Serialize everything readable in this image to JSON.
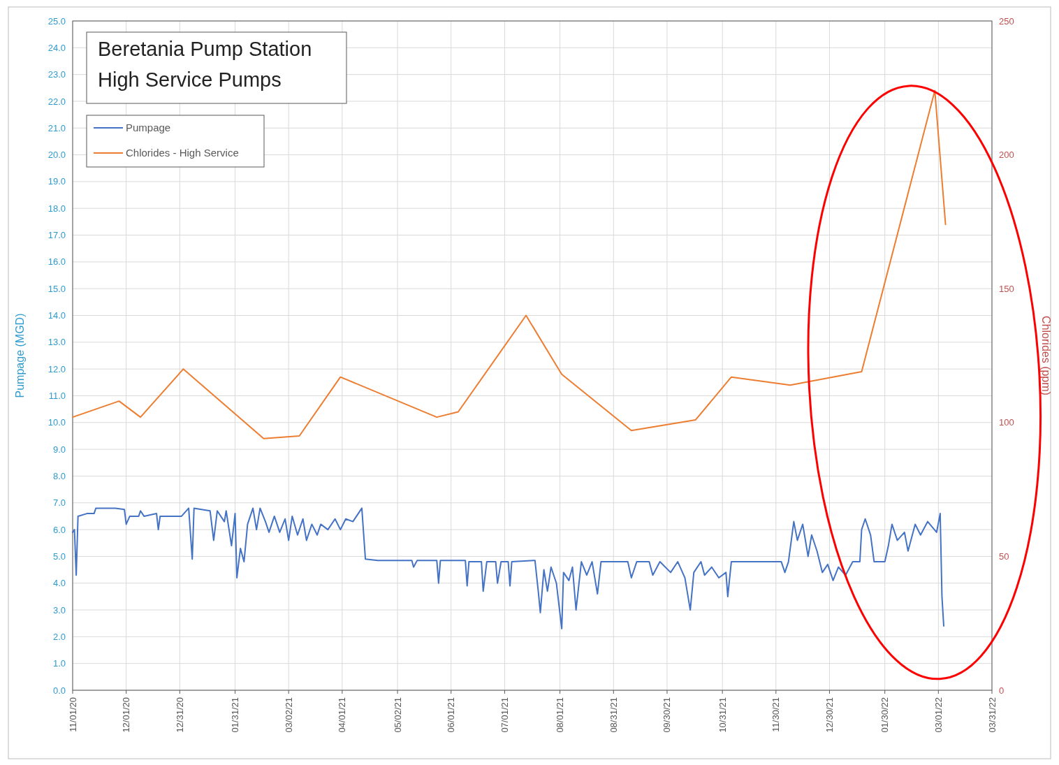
{
  "chart_data": {
    "type": "line",
    "title": "Beretania Pump Station\nHigh Service Pumps",
    "ylabel": "Pumpage (MGD)",
    "y2label": "Chlorides (ppm)",
    "xlim": [
      "2020-11-01",
      "2022-03-31"
    ],
    "xticks": [
      {
        "value": "2020-11-01",
        "label": "11/01/20"
      },
      {
        "value": "2020-12-01",
        "label": "12/01/20"
      },
      {
        "value": "2020-12-31",
        "label": "12/31/20"
      },
      {
        "value": "2021-01-31",
        "label": "01/31/21"
      },
      {
        "value": "2021-03-02",
        "label": "03/02/21"
      },
      {
        "value": "2021-04-01",
        "label": "04/01/21"
      },
      {
        "value": "2021-05-02",
        "label": "05/02/21"
      },
      {
        "value": "2021-06-01",
        "label": "06/01/21"
      },
      {
        "value": "2021-07-01",
        "label": "07/01/21"
      },
      {
        "value": "2021-08-01",
        "label": "08/01/21"
      },
      {
        "value": "2021-08-31",
        "label": "08/31/21"
      },
      {
        "value": "2021-09-30",
        "label": "09/30/21"
      },
      {
        "value": "2021-10-31",
        "label": "10/31/21"
      },
      {
        "value": "2021-11-30",
        "label": "11/30/21"
      },
      {
        "value": "2021-12-30",
        "label": "12/30/21"
      },
      {
        "value": "2022-01-30",
        "label": "01/30/22"
      },
      {
        "value": "2022-03-01",
        "label": "03/01/22"
      },
      {
        "value": "2022-03-31",
        "label": "03/31/22"
      }
    ],
    "ylim": [
      0,
      25
    ],
    "yticks": [
      {
        "value": 0,
        "label": "0.0"
      },
      {
        "value": 1,
        "label": "1.0"
      },
      {
        "value": 2,
        "label": "2.0"
      },
      {
        "value": 3,
        "label": "3.0"
      },
      {
        "value": 4,
        "label": "4.0"
      },
      {
        "value": 5,
        "label": "5.0"
      },
      {
        "value": 6,
        "label": "6.0"
      },
      {
        "value": 7,
        "label": "7.0"
      },
      {
        "value": 8,
        "label": "8.0"
      },
      {
        "value": 9,
        "label": "9.0"
      },
      {
        "value": 10,
        "label": "10.0"
      },
      {
        "value": 11,
        "label": "11.0"
      },
      {
        "value": 12,
        "label": "12.0"
      },
      {
        "value": 13,
        "label": "13.0"
      },
      {
        "value": 14,
        "label": "14.0"
      },
      {
        "value": 15,
        "label": "15.0"
      },
      {
        "value": 16,
        "label": "16.0"
      },
      {
        "value": 17,
        "label": "17.0"
      },
      {
        "value": 18,
        "label": "18.0"
      },
      {
        "value": 19,
        "label": "19.0"
      },
      {
        "value": 20,
        "label": "20.0"
      },
      {
        "value": 21,
        "label": "21.0"
      },
      {
        "value": 22,
        "label": "22.0"
      },
      {
        "value": 23,
        "label": "23.0"
      },
      {
        "value": 24,
        "label": "24.0"
      },
      {
        "value": 25,
        "label": "25.0"
      }
    ],
    "y2lim": [
      0,
      250
    ],
    "y2ticks": [
      0,
      50,
      100,
      150,
      200,
      250
    ],
    "grid": true,
    "legend": "top left",
    "marker": "none",
    "series": [
      {
        "name": "Pumpage",
        "color": "#4472c4",
        "x": [
          "2020-11-01",
          "2020-11-02",
          "2020-11-03",
          "2020-11-04",
          "2020-11-09",
          "2020-11-13",
          "2020-11-14",
          "2020-11-25",
          "2020-11-30",
          "2020-12-01",
          "2020-12-03",
          "2020-12-08",
          "2020-12-09",
          "2020-12-11",
          "2020-12-18",
          "2020-12-19",
          "2020-12-20",
          "2020-12-26",
          "2021-01-01",
          "2021-01-05",
          "2021-01-07",
          "2021-01-08",
          "2021-01-17",
          "2021-01-19",
          "2021-01-21",
          "2021-01-25",
          "2021-01-26",
          "2021-01-29",
          "2021-01-31",
          "2021-02-01",
          "2021-02-03",
          "2021-02-05",
          "2021-02-07",
          "2021-02-10",
          "2021-02-12",
          "2021-02-14",
          "2021-02-17",
          "2021-02-19",
          "2021-02-22",
          "2021-02-25",
          "2021-02-28",
          "2021-03-02",
          "2021-03-04",
          "2021-03-07",
          "2021-03-10",
          "2021-03-12",
          "2021-03-15",
          "2021-03-18",
          "2021-03-20",
          "2021-03-24",
          "2021-03-28",
          "2021-03-31",
          "2021-04-03",
          "2021-04-07",
          "2021-04-10",
          "2021-04-12",
          "2021-04-14",
          "2021-04-21",
          "2021-05-10",
          "2021-05-11",
          "2021-05-13",
          "2021-05-24",
          "2021-05-25",
          "2021-05-26",
          "2021-06-09",
          "2021-06-10",
          "2021-06-11",
          "2021-06-18",
          "2021-06-19",
          "2021-06-21",
          "2021-06-26",
          "2021-06-27",
          "2021-06-29",
          "2021-07-03",
          "2021-07-04",
          "2021-07-05",
          "2021-07-18",
          "2021-07-20",
          "2021-07-21",
          "2021-07-23",
          "2021-07-25",
          "2021-07-27",
          "2021-07-30",
          "2021-08-02",
          "2021-08-03",
          "2021-08-06",
          "2021-08-08",
          "2021-08-10",
          "2021-08-13",
          "2021-08-16",
          "2021-08-19",
          "2021-08-22",
          "2021-08-24",
          "2021-09-08",
          "2021-09-10",
          "2021-09-13",
          "2021-09-20",
          "2021-09-22",
          "2021-09-26",
          "2021-10-02",
          "2021-10-06",
          "2021-10-10",
          "2021-10-13",
          "2021-10-15",
          "2021-10-19",
          "2021-10-21",
          "2021-10-25",
          "2021-10-29",
          "2021-11-02",
          "2021-11-03",
          "2021-11-05",
          "2021-12-03",
          "2021-12-05",
          "2021-12-07",
          "2021-12-10",
          "2021-12-12",
          "2021-12-15",
          "2021-12-18",
          "2021-12-20",
          "2021-12-23",
          "2021-12-26",
          "2021-12-29",
          "2022-01-01",
          "2022-01-04",
          "2022-01-08",
          "2022-01-12",
          "2022-01-16",
          "2022-01-17",
          "2022-01-19",
          "2022-01-22",
          "2022-01-24",
          "2022-01-30",
          "2022-02-01",
          "2022-02-03",
          "2022-02-06",
          "2022-02-10",
          "2022-02-12",
          "2022-02-16",
          "2022-02-19",
          "2022-02-23",
          "2022-02-28",
          "2022-03-02",
          "2022-03-03",
          "2022-03-04"
        ],
        "values": [
          5.9,
          6.0,
          4.3,
          6.5,
          6.6,
          6.6,
          6.8,
          6.8,
          6.75,
          6.2,
          6.5,
          6.5,
          6.7,
          6.5,
          6.6,
          6.0,
          6.5,
          6.5,
          6.5,
          6.8,
          4.9,
          6.8,
          6.7,
          5.6,
          6.7,
          6.3,
          6.7,
          5.4,
          6.6,
          4.2,
          5.3,
          4.8,
          6.2,
          6.8,
          6.0,
          6.8,
          6.3,
          5.9,
          6.5,
          5.9,
          6.4,
          5.6,
          6.5,
          5.8,
          6.4,
          5.6,
          6.2,
          5.8,
          6.2,
          6.0,
          6.4,
          6.0,
          6.4,
          6.3,
          6.6,
          6.8,
          4.9,
          4.85,
          4.85,
          4.6,
          4.85,
          4.85,
          4.0,
          4.85,
          4.85,
          3.9,
          4.8,
          4.8,
          3.7,
          4.8,
          4.8,
          4.0,
          4.8,
          4.8,
          3.9,
          4.8,
          4.85,
          3.6,
          2.9,
          4.5,
          3.7,
          4.6,
          4.0,
          2.3,
          4.4,
          4.1,
          4.6,
          3.0,
          4.8,
          4.3,
          4.8,
          3.6,
          4.8,
          4.8,
          4.2,
          4.8,
          4.8,
          4.3,
          4.8,
          4.4,
          4.8,
          4.2,
          3.0,
          4.4,
          4.8,
          4.3,
          4.6,
          4.2,
          4.4,
          3.5,
          4.8,
          4.8,
          4.4,
          4.8,
          6.3,
          5.6,
          6.2,
          5.0,
          5.8,
          5.2,
          4.4,
          4.7,
          4.1,
          4.6,
          4.3,
          4.8,
          4.8,
          6.0,
          6.4,
          5.8,
          4.8,
          4.8,
          5.4,
          6.2,
          5.6,
          5.9,
          5.2,
          6.2,
          5.8,
          6.3,
          5.9,
          6.6,
          3.5,
          2.4
        ]
      },
      {
        "name": "Chlorides - High Service",
        "color": "#ed7d31",
        "axis": "y2",
        "x": [
          "2020-11-01",
          "2020-11-27",
          "2020-12-09",
          "2021-01-02",
          "2021-02-16",
          "2021-03-08",
          "2021-03-31",
          "2021-05-24",
          "2021-06-05",
          "2021-07-13",
          "2021-08-02",
          "2021-09-10",
          "2021-10-16",
          "2021-11-05",
          "2021-12-08",
          "2022-01-17",
          "2022-02-27",
          "2022-03-05"
        ],
        "values": [
          102,
          108,
          102,
          120,
          94,
          95,
          117,
          102,
          104,
          140,
          118,
          97,
          101,
          117,
          114,
          119,
          224,
          174
        ]
      }
    ]
  }
}
